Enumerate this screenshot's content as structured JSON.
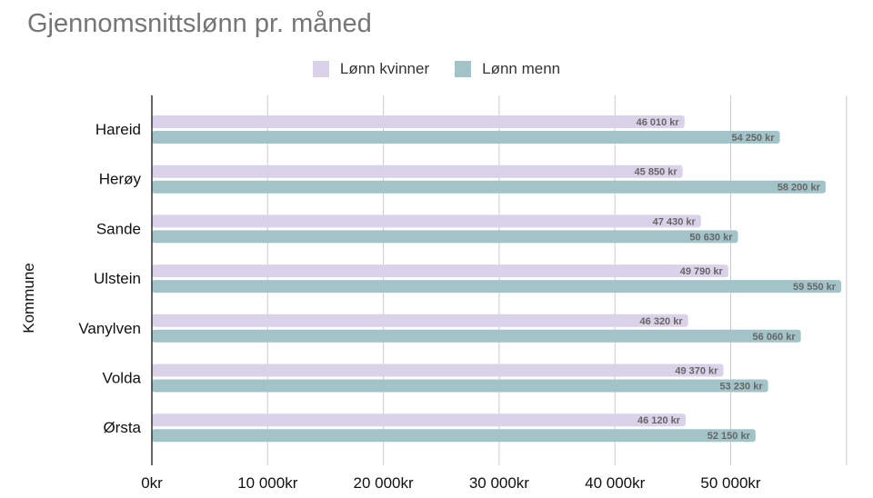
{
  "chart_data": {
    "type": "bar",
    "orientation": "horizontal",
    "title": "Gjennomsnittslønn pr. måned",
    "ylabel": "Kommune",
    "xlabel": "",
    "categories": [
      "Hareid",
      "Herøy",
      "Sande",
      "Ulstein",
      "Vanylven",
      "Volda",
      "Ørsta"
    ],
    "series": [
      {
        "name": "Lønn kvinner",
        "color": "#d9d2e9",
        "values": [
          46010,
          45850,
          47430,
          49790,
          46320,
          49370,
          46120
        ],
        "labels": [
          "46 010 kr",
          "45 850 kr",
          "47 430 kr",
          "49 790 kr",
          "46 320 kr",
          "49 370 kr",
          "46 120 kr"
        ]
      },
      {
        "name": "Lønn menn",
        "color": "#a2c4c9",
        "values": [
          54250,
          58200,
          50630,
          59550,
          56060,
          53230,
          52150
        ],
        "labels": [
          "54 250 kr",
          "58 200 kr",
          "50 630 kr",
          "59 550 kr",
          "56 060 kr",
          "53 230 kr",
          "52 150 kr"
        ]
      }
    ],
    "xlim": [
      0,
      60000
    ],
    "xticks": [
      0,
      10000,
      20000,
      30000,
      40000,
      50000
    ],
    "xtick_labels": [
      "0kr",
      "10 000kr",
      "20 000kr",
      "30 000kr",
      "40 000kr",
      "50 000kr"
    ],
    "grid": true,
    "legend_position": "top"
  }
}
